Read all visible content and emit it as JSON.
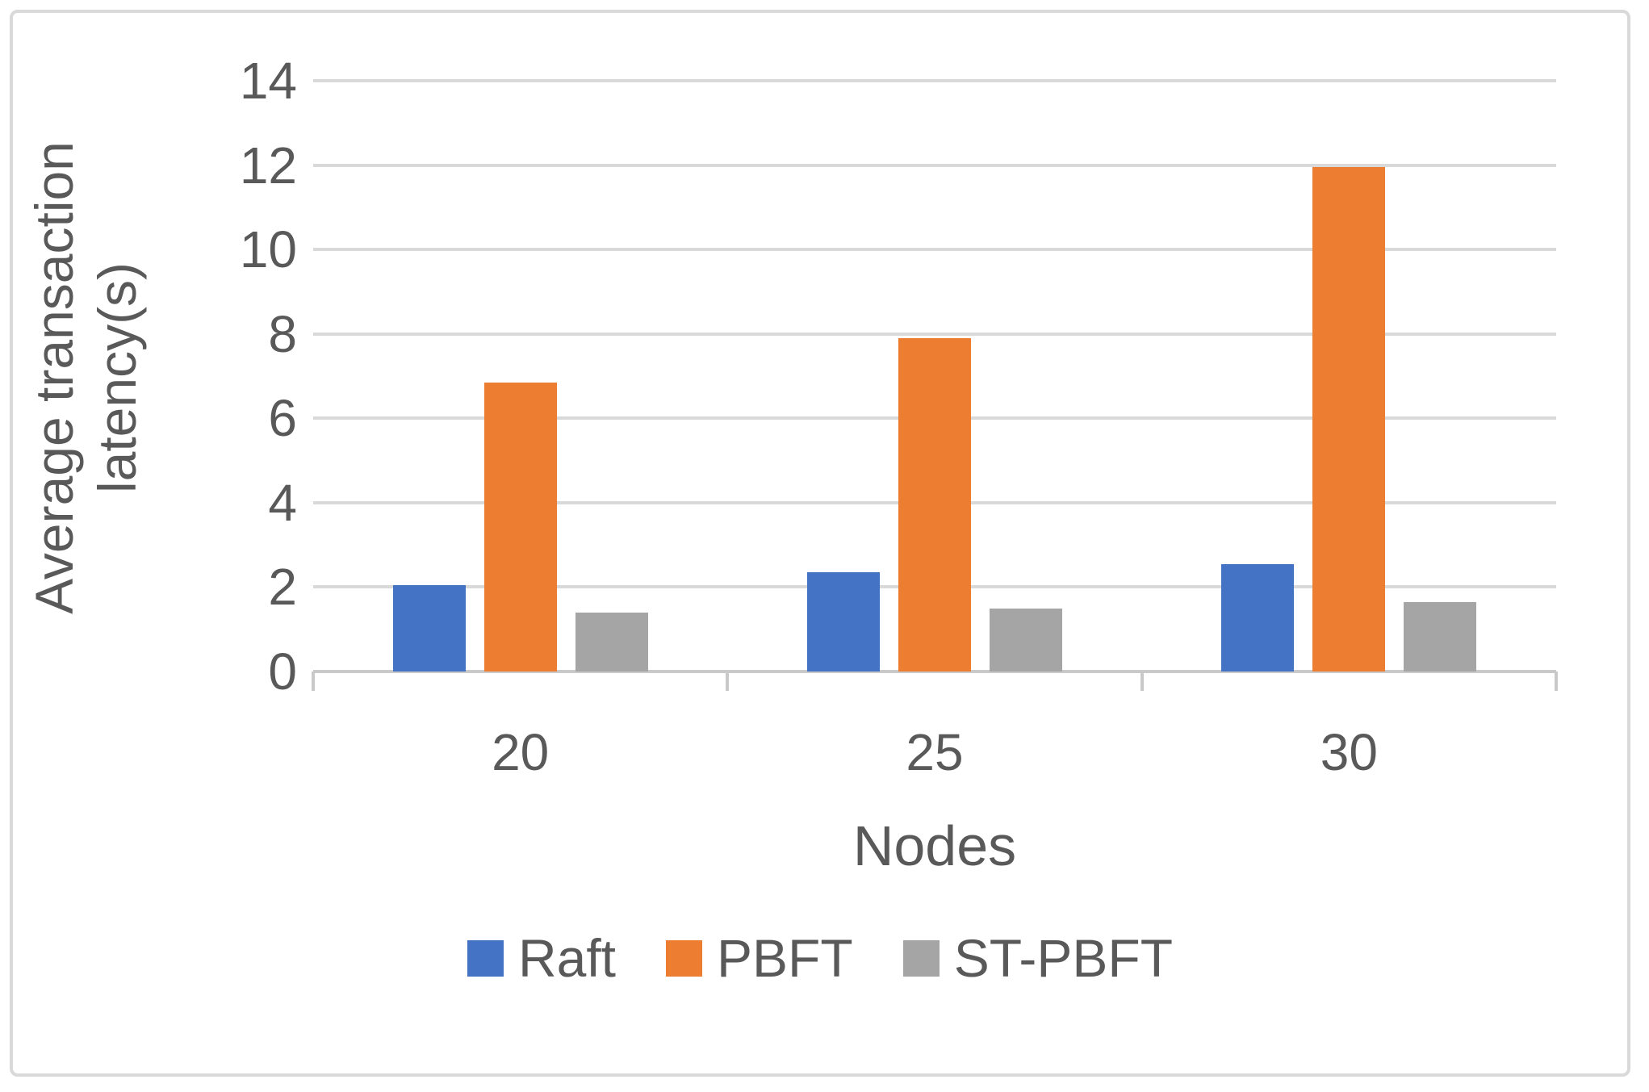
{
  "figure": {
    "background_color": "#ffffff",
    "frame_color": "#d9d9d9",
    "text_color": "#595959",
    "gridline_color": "#d9d9d9",
    "axis_line_color": "#c9c9c9"
  },
  "chart_data": {
    "type": "bar",
    "title": "",
    "categories": [
      "20",
      "25",
      "30"
    ],
    "series": [
      {
        "name": "Raft",
        "color": "#4472C4",
        "values": [
          2.05,
          2.35,
          2.55
        ]
      },
      {
        "name": "PBFT",
        "color": "#ED7D31",
        "values": [
          6.85,
          7.9,
          11.95
        ]
      },
      {
        "name": "ST-PBFT",
        "color": "#A5A5A5",
        "values": [
          1.4,
          1.5,
          1.65
        ]
      }
    ],
    "xlabel": "Nodes",
    "ylabel": "Average transaction latency(s)",
    "ylabel_lines": [
      "Average transaction",
      "latency(s)"
    ],
    "ylim": [
      0,
      14
    ],
    "ytick_interval": 2,
    "ytick_labels": [
      "0",
      "2",
      "4",
      "6",
      "8",
      "10",
      "12",
      "14"
    ],
    "grid": true,
    "legend_position": "bottom",
    "legend_labels": [
      "Raft",
      "PBFT",
      "ST-PBFT"
    ]
  }
}
